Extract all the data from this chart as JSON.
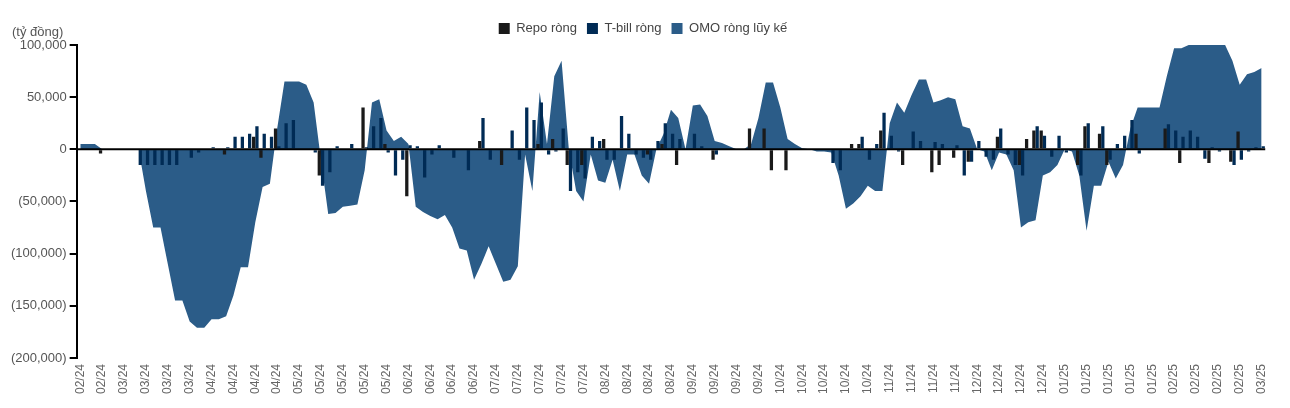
{
  "chart_data": {
    "type": "bar",
    "ylabel": "(tỷ đồng)",
    "legend": "top",
    "grid": false,
    "categories": [
      "02/24",
      null,
      null,
      "02/24",
      null,
      null,
      "03/24",
      null,
      null,
      "03/24",
      null,
      null,
      "03/24",
      null,
      null,
      "03/24",
      null,
      null,
      "04/24",
      null,
      null,
      "04/24",
      null,
      null,
      "04/24",
      null,
      null,
      "04/24",
      null,
      null,
      "05/24",
      null,
      null,
      "05/24",
      null,
      null,
      "05/24",
      null,
      null,
      "05/24",
      null,
      null,
      "05/24",
      null,
      null,
      "06/24",
      null,
      null,
      "06/24",
      null,
      null,
      "06/24",
      null,
      null,
      "06/24",
      null,
      null,
      "07/24",
      null,
      null,
      "07/24",
      null,
      null,
      "07/24",
      null,
      null,
      "07/24",
      null,
      null,
      "07/24",
      null,
      null,
      "08/24",
      null,
      null,
      "08/24",
      null,
      null,
      "08/24",
      null,
      null,
      "08/24",
      null,
      null,
      "09/24",
      null,
      null,
      "09/24",
      null,
      null,
      "09/24",
      null,
      null,
      "09/24",
      null,
      null,
      "10/24",
      null,
      null,
      "10/24",
      null,
      null,
      "10/24",
      null,
      null,
      "10/24",
      null,
      null,
      "10/24",
      null,
      null,
      "11/24",
      null,
      null,
      "11/24",
      null,
      null,
      "11/24",
      null,
      null,
      "11/24",
      null,
      null,
      "12/24",
      null,
      null,
      "12/24",
      null,
      null,
      "12/24",
      null,
      null,
      "12/24",
      null,
      null,
      "01/25",
      null,
      null,
      "01/25",
      null,
      null,
      "01/25",
      null,
      null,
      "01/25",
      null,
      null,
      "01/25",
      null,
      null,
      "02/25",
      null,
      null,
      "02/25",
      null,
      null,
      "02/25",
      null,
      null,
      "02/25",
      null,
      null,
      "03/25"
    ],
    "series": [
      {
        "name": "OMO ròng lũy kế",
        "type": "area",
        "color": "#2b5c88",
        "values": [
          5000,
          5000,
          5000,
          0,
          0,
          0,
          0,
          0,
          0,
          -40000,
          -75000,
          -75000,
          -110000,
          -145000,
          -145000,
          -165000,
          -171000,
          -171000,
          -163000,
          -163000,
          -160000,
          -140000,
          -113000,
          -113000,
          -70000,
          -36000,
          -33000,
          20000,
          65000,
          65000,
          65000,
          62000,
          45000,
          -10000,
          -62000,
          -61000,
          -55000,
          -54000,
          -53000,
          -20000,
          45000,
          48000,
          18000,
          8000,
          12000,
          5000,
          -55000,
          -60000,
          -64000,
          -67000,
          -63000,
          -75000,
          -95000,
          -97000,
          -125000,
          -110000,
          -93000,
          -110000,
          -127000,
          -125000,
          -112000,
          -5000,
          -40000,
          55000,
          5000,
          70000,
          85000,
          0,
          -40000,
          -50000,
          -5000,
          -30000,
          -32000,
          -10000,
          -40000,
          -5000,
          -5000,
          -25000,
          -33000,
          0,
          15000,
          38000,
          30000,
          0,
          42000,
          43000,
          32000,
          8000,
          6000,
          3000,
          0,
          0,
          5000,
          30000,
          64000,
          64000,
          40000,
          10000,
          5000,
          1000,
          0,
          -2000,
          -2000,
          -3000,
          -25000,
          -57000,
          -52000,
          -45000,
          -35000,
          -40000,
          -40000,
          25000,
          45000,
          35000,
          52000,
          67000,
          67000,
          45000,
          47000,
          50000,
          48000,
          22000,
          20000,
          0,
          -2000,
          -20000,
          -3000,
          -5000,
          -20000,
          -75000,
          -70000,
          -68000,
          -25000,
          -22000,
          -15000,
          0,
          -2000,
          -25000,
          -78000,
          -35000,
          -35000,
          -12000,
          -28000,
          -15000,
          20000,
          40000,
          40000,
          40000,
          40000,
          70000,
          97000,
          97000,
          100000,
          100000,
          100000,
          100000,
          100000,
          100000,
          85000,
          62000,
          72000,
          74000,
          78000
        ]
      },
      {
        "name": "Repo ròng",
        "color": "#1a1a1a",
        "values": [
          null,
          null,
          null,
          -4000,
          null,
          null,
          null,
          null,
          null,
          null,
          null,
          null,
          null,
          null,
          null,
          null,
          null,
          null,
          null,
          null,
          -5000,
          null,
          null,
          null,
          12000,
          -8000,
          null,
          20000,
          null,
          null,
          null,
          null,
          null,
          -25000,
          null,
          null,
          null,
          null,
          null,
          40000,
          null,
          null,
          5000,
          null,
          null,
          -45000,
          null,
          null,
          null,
          null,
          null,
          null,
          null,
          null,
          null,
          8000,
          null,
          null,
          -15000,
          null,
          null,
          null,
          null,
          5000,
          null,
          10000,
          null,
          -15000,
          null,
          -15000,
          null,
          null,
          10000,
          null,
          null,
          null,
          null,
          null,
          -5000,
          null,
          5000,
          null,
          -15000,
          null,
          null,
          null,
          null,
          -10000,
          null,
          null,
          null,
          null,
          20000,
          null,
          20000,
          -20000,
          null,
          -20000,
          null,
          null,
          null,
          null,
          null,
          null,
          null,
          null,
          5000,
          5000,
          null,
          null,
          18000,
          null,
          null,
          -15000,
          null,
          null,
          null,
          -22000,
          -15000,
          null,
          -8000,
          null,
          -12000,
          null,
          null,
          null,
          12000,
          null,
          null,
          -15000,
          10000,
          18000,
          18000,
          null,
          null,
          null,
          null,
          -15000,
          22000,
          null,
          15000,
          -15000,
          null,
          null,
          null,
          15000,
          null,
          null,
          null,
          20000,
          null,
          -13000,
          null,
          null,
          null,
          -13000,
          null,
          null,
          -12000,
          17000,
          null,
          null,
          null
        ]
      },
      {
        "name": "T-bill ròng",
        "color": "#002b55",
        "values": [
          null,
          null,
          null,
          null,
          null,
          null,
          null,
          null,
          -15000,
          -15000,
          -15000,
          -15000,
          -15000,
          -15000,
          null,
          -8000,
          -3000,
          null,
          2000,
          null,
          2000,
          12000,
          12000,
          15000,
          22000,
          15000,
          12000,
          3000,
          25000,
          28000,
          null,
          null,
          -3000,
          -35000,
          -22000,
          3000,
          null,
          5000,
          null,
          2000,
          22000,
          30000,
          -3000,
          -25000,
          -10000,
          4000,
          3000,
          -27000,
          -5000,
          4000,
          null,
          -8000,
          null,
          -20000,
          null,
          30000,
          -10000,
          null,
          null,
          18000,
          -10000,
          40000,
          28000,
          45000,
          -5000,
          -2000,
          20000,
          -40000,
          -22000,
          -28000,
          12000,
          8000,
          -10000,
          -10000,
          32000,
          15000,
          -5000,
          -8000,
          -10000,
          8000,
          25000,
          15000,
          10000,
          null,
          15000,
          3000,
          null,
          -5000,
          null,
          null,
          null,
          null,
          null,
          null,
          null,
          null,
          null,
          null,
          null,
          null,
          null,
          null,
          null,
          -13000,
          -20000,
          null,
          null,
          12000,
          -10000,
          5000,
          35000,
          13000,
          -2000,
          null,
          17000,
          8000,
          null,
          7000,
          5000,
          null,
          4000,
          -25000,
          -12000,
          8000,
          -7000,
          -10000,
          20000,
          -5000,
          -15000,
          -25000,
          null,
          22000,
          13000,
          -7000,
          13000,
          -3000,
          null,
          -25000,
          25000,
          null,
          22000,
          -10000,
          5000,
          13000,
          28000,
          -4000,
          null,
          null,
          null,
          24000,
          18000,
          12000,
          18000,
          12000,
          -9000,
          2000,
          -2000,
          null,
          -15000,
          -10000,
          -2000,
          2000,
          3000
        ]
      }
    ],
    "ylim": [
      -200000,
      100000
    ],
    "yticks": [
      {
        "value": -200000,
        "label": "(200,000)"
      },
      {
        "value": -150000,
        "label": "(150,000)"
      },
      {
        "value": -100000,
        "label": "(100,000)"
      },
      {
        "value": -50000,
        "label": "(50,000)"
      },
      0,
      {
        "value": 50000,
        "label": "50,000"
      },
      {
        "value": 100000,
        "label": "100,000"
      }
    ],
    "ref_lines": [
      {
        "axis": "y",
        "value": 0,
        "color": "#000000"
      }
    ]
  }
}
